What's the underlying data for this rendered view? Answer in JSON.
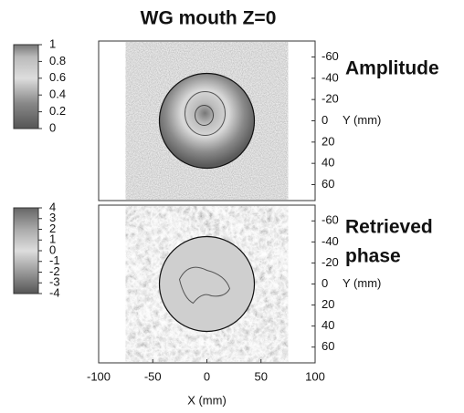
{
  "chart_data": [
    {
      "type": "heatmap",
      "title": "WG mouth Z=0",
      "label": [
        "Amplitude"
      ],
      "xlim": [
        -100,
        100
      ],
      "ylim": [
        -75,
        75
      ],
      "y_inverted": true,
      "image_xlim": [
        -75,
        75
      ],
      "yticks": [
        -60,
        -40,
        -20,
        0,
        20,
        40,
        60
      ],
      "ylabel": "Y (mm)",
      "colorbar": {
        "clim": [
          0,
          1
        ],
        "ticks": [
          0,
          0.2,
          0.4,
          0.6,
          0.8,
          1
        ]
      }
    },
    {
      "type": "heatmap",
      "label": [
        "Retrieved",
        "phase"
      ],
      "xlim": [
        -100,
        100
      ],
      "ylim": [
        -75,
        75
      ],
      "y_inverted": true,
      "image_xlim": [
        -75,
        75
      ],
      "xticks": [
        -100,
        -50,
        0,
        50,
        100
      ],
      "xlabel": "X (mm)",
      "yticks": [
        -60,
        -40,
        -20,
        0,
        20,
        40,
        60
      ],
      "ylabel": "Y (mm)",
      "colorbar": {
        "clim": [
          -4,
          4
        ],
        "ticks": [
          -4,
          -3,
          -2,
          -1,
          0,
          1,
          2,
          3,
          4
        ]
      }
    }
  ]
}
